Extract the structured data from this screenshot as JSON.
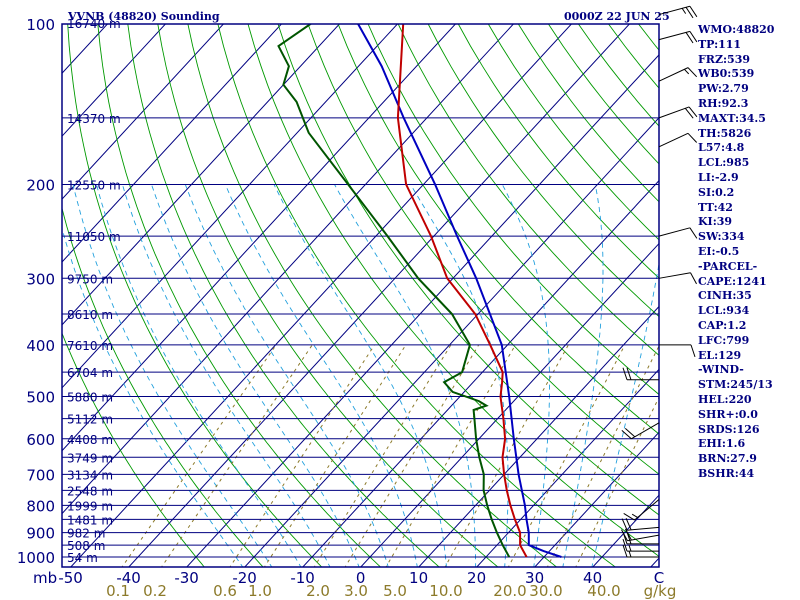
{
  "header": {
    "station": "VVNB (48820) Sounding",
    "time": "0000Z 22 JUN 25"
  },
  "stats": [
    "WMO:48820",
    "TP:111",
    "FRZ:539",
    "WB0:539",
    "PW:2.79",
    "RH:92.3",
    "MAXT:34.5",
    "TH:5826",
    "L57:4.8",
    "LCL:985",
    "LI:-2.9",
    "SI:0.2",
    "TT:42",
    "KI:39",
    "SW:334",
    "EI:-0.5",
    "-PARCEL-",
    "CAPE:1241",
    "CINH:35",
    "LCL:934",
    "CAP:1.2",
    "LFC:799",
    "EL:129",
    "-WIND-",
    "STM:245/13",
    "HEL:220",
    "SHR+:0.0",
    "SRDS:126",
    "EHI:1.6",
    "BRN:27.9",
    "BSHR:44"
  ],
  "colors": {
    "frame": "#000080",
    "isobar": "#000080",
    "isotherm": "#000080",
    "dry_adiabat": "#009900",
    "moist_adiabat": "#22a0dd",
    "mixing_ratio": "#8c7a2a",
    "temperature": "#c00000",
    "dewpoint": "#005500",
    "parcel": "#0000c0",
    "wind": "#000000"
  },
  "chart_data": {
    "type": "skew-t",
    "y_unit": "mb",
    "x_unit_label": "C",
    "mixing_ratio_unit": "g/kg",
    "pressure_labels": [
      100,
      200,
      300,
      400,
      500,
      600,
      700,
      800,
      900,
      1000
    ],
    "height_labels": [
      {
        "p": 150,
        "label": "14370 m"
      },
      {
        "p": 200,
        "label": "12550 m"
      },
      {
        "p": 250,
        "label": "11050 m"
      },
      {
        "p": 300,
        "label": "9750 m"
      },
      {
        "p": 350,
        "label": "8610 m"
      },
      {
        "p": 400,
        "label": "7610 m"
      },
      {
        "p": 450,
        "label": "6704 m"
      },
      {
        "p": 500,
        "label": "5880 m"
      },
      {
        "p": 550,
        "label": "5112 m"
      },
      {
        "p": 600,
        "label": "4408 m"
      },
      {
        "p": 650,
        "label": "3749 m"
      },
      {
        "p": 700,
        "label": "3134 m"
      },
      {
        "p": 750,
        "label": "2548 m"
      },
      {
        "p": 800,
        "label": "1999 m"
      },
      {
        "p": 850,
        "label": "1481 m"
      },
      {
        "p": 900,
        "label": "982 m"
      },
      {
        "p": 950,
        "label": "508 m"
      },
      {
        "p": 1000,
        "label": "54 m"
      }
    ],
    "top_height_label": "16740 m",
    "temperature_ticks": [
      "-50",
      "-40",
      "-30",
      "-20",
      "-10",
      "0",
      "10",
      "20",
      "30",
      "40"
    ],
    "mixing_ratio_ticks": [
      "0.1",
      "0.2",
      "0.6",
      "1.0",
      "2.0",
      "3.0",
      "5.0",
      "10.0",
      "20.0",
      "30.0",
      "40.0"
    ],
    "temperature": [
      [
        1000,
        27
      ],
      [
        950,
        24
      ],
      [
        900,
        22
      ],
      [
        850,
        19
      ],
      [
        800,
        16
      ],
      [
        750,
        13
      ],
      [
        700,
        10
      ],
      [
        650,
        7
      ],
      [
        600,
        4.5
      ],
      [
        550,
        1
      ],
      [
        500,
        -3
      ],
      [
        470,
        -5
      ],
      [
        450,
        -6.5
      ],
      [
        400,
        -13
      ],
      [
        350,
        -20.5
      ],
      [
        300,
        -31
      ],
      [
        250,
        -40.5
      ],
      [
        200,
        -53
      ],
      [
        150,
        -65
      ],
      [
        100,
        -79
      ],
      [
        94,
        -77
      ],
      [
        87,
        -76
      ]
    ],
    "dewpoint": [
      [
        1000,
        24
      ],
      [
        950,
        21
      ],
      [
        900,
        18
      ],
      [
        850,
        15
      ],
      [
        800,
        12
      ],
      [
        750,
        9
      ],
      [
        700,
        6.5
      ],
      [
        650,
        3
      ],
      [
        600,
        -0.5
      ],
      [
        550,
        -4
      ],
      [
        530,
        -5.5
      ],
      [
        520,
        -4
      ],
      [
        510,
        -6
      ],
      [
        490,
        -12
      ],
      [
        470,
        -15
      ],
      [
        450,
        -13.5
      ],
      [
        400,
        -16.5
      ],
      [
        350,
        -24.5
      ],
      [
        300,
        -36
      ],
      [
        250,
        -48
      ],
      [
        200,
        -63
      ],
      [
        160,
        -78
      ],
      [
        140,
        -85
      ],
      [
        130,
        -90
      ],
      [
        120,
        -92
      ],
      [
        110,
        -97
      ],
      [
        100,
        -95
      ],
      [
        87,
        -88
      ]
    ],
    "parcel": [
      [
        1000,
        33
      ],
      [
        975,
        29
      ],
      [
        950,
        25.5
      ],
      [
        900,
        23.5
      ],
      [
        850,
        21
      ],
      [
        800,
        18.5
      ],
      [
        700,
        12.5
      ],
      [
        600,
        6
      ],
      [
        500,
        -1.5
      ],
      [
        400,
        -11
      ],
      [
        300,
        -26
      ],
      [
        250,
        -36
      ],
      [
        200,
        -48
      ],
      [
        150,
        -64
      ],
      [
        120,
        -76
      ],
      [
        87,
        -95
      ]
    ],
    "winds": [
      {
        "p": 87,
        "dir": 70,
        "spd": 20
      },
      {
        "p": 96,
        "dir": 75,
        "spd": 25
      },
      {
        "p": 107,
        "dir": 75,
        "spd": 20
      },
      {
        "p": 128,
        "dir": 65,
        "spd": 15
      },
      {
        "p": 150,
        "dir": 70,
        "spd": 20
      },
      {
        "p": 170,
        "dir": 65,
        "spd": 10
      },
      {
        "p": 250,
        "dir": 75,
        "spd": 10
      },
      {
        "p": 300,
        "dir": 80,
        "spd": 10
      },
      {
        "p": 400,
        "dir": 90,
        "spd": 10
      },
      {
        "p": 465,
        "dir": 270,
        "spd": 20
      },
      {
        "p": 560,
        "dir": 240,
        "spd": 20
      },
      {
        "p": 780,
        "dir": 230,
        "spd": 15
      },
      {
        "p": 880,
        "dir": 265,
        "spd": 20
      },
      {
        "p": 910,
        "dir": 260,
        "spd": 20
      },
      {
        "p": 945,
        "dir": 270,
        "spd": 20
      },
      {
        "p": 975,
        "dir": 270,
        "spd": 15
      },
      {
        "p": 1000,
        "dir": 270,
        "spd": 15
      }
    ]
  }
}
